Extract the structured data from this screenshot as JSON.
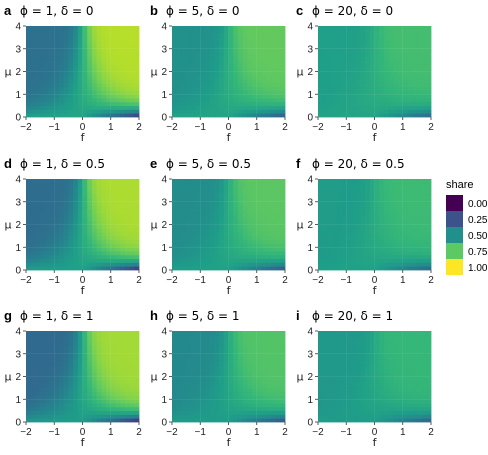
{
  "chart_data": {
    "type": "heatmap",
    "colormap": "viridis",
    "x_var": "f",
    "y_var": "μ",
    "x_range": [
      -2,
      2
    ],
    "y_range": [
      0,
      4
    ],
    "x_ticks": [
      "−2",
      "−1",
      "0",
      "1",
      "2"
    ],
    "y_ticks": [
      "0",
      "1",
      "2",
      "3",
      "4"
    ],
    "legend": {
      "title": "share",
      "placement": "right",
      "breaks": [
        "0.00",
        "0.25",
        "0.50",
        "0.75",
        "1.00"
      ],
      "colors": [
        "#440154",
        "#3b528b",
        "#21908c",
        "#5dc963",
        "#fde725"
      ]
    },
    "panels": [
      {
        "letter": "a",
        "title": "ϕ = 1, δ = 0",
        "phi": 1,
        "delta": 0
      },
      {
        "letter": "b",
        "title": "ϕ = 5, δ = 0",
        "phi": 5,
        "delta": 0
      },
      {
        "letter": "c",
        "title": "ϕ = 20, δ = 0",
        "phi": 20,
        "delta": 0
      },
      {
        "letter": "d",
        "title": "ϕ = 1, δ = 0.5",
        "phi": 1,
        "delta": 0.5
      },
      {
        "letter": "e",
        "title": "ϕ = 5, δ = 0.5",
        "phi": 5,
        "delta": 0.5
      },
      {
        "letter": "f",
        "title": "ϕ = 20, δ = 0.5",
        "phi": 20,
        "delta": 0.5
      },
      {
        "letter": "g",
        "title": "ϕ = 1, δ = 1",
        "phi": 1,
        "delta": 1
      },
      {
        "letter": "h",
        "title": "ϕ = 5, δ = 1",
        "phi": 5,
        "delta": 1
      },
      {
        "letter": "i",
        "title": "ϕ = 20, δ = 1",
        "phi": 20,
        "delta": 1
      }
    ]
  }
}
